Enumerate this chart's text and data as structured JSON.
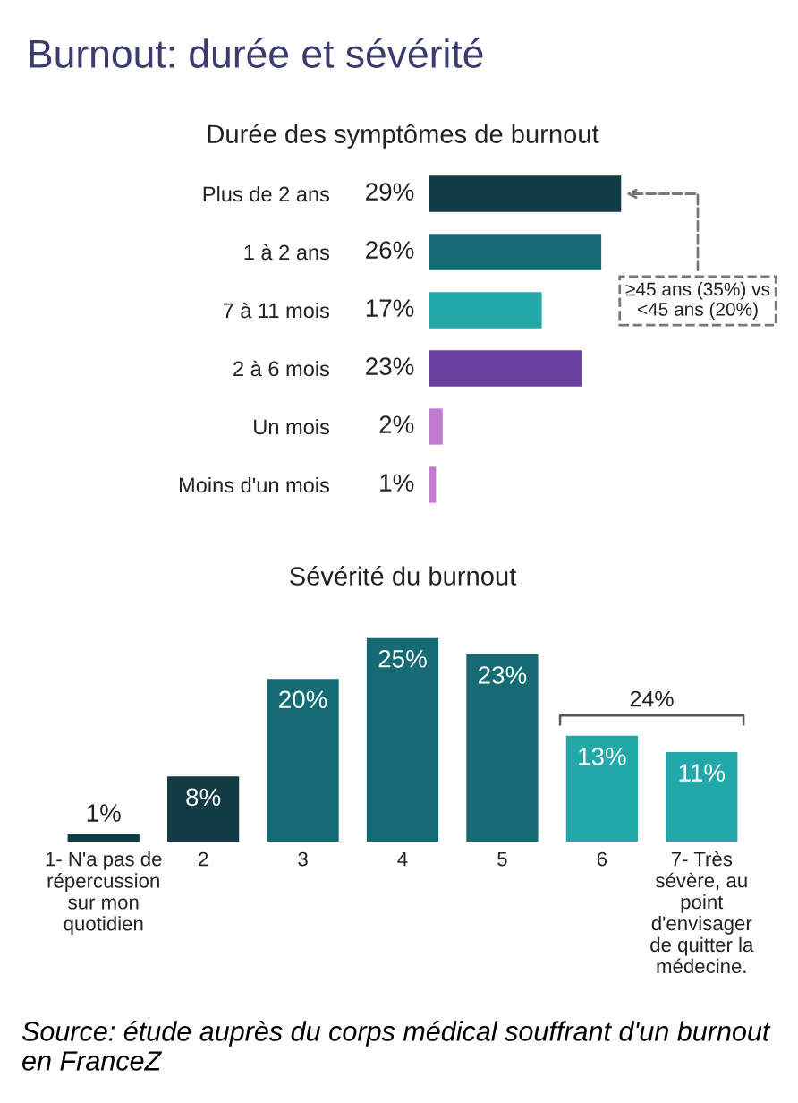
{
  "chart_data": [
    {
      "type": "bar",
      "orientation": "horizontal",
      "title": "Burnout: durée et sévérité",
      "subtitle": "Durée des symptômes de burnout",
      "categories": [
        "Plus de 2 ans",
        "1 à 2 ans",
        "7 à 11 mois",
        "2 à 6 mois",
        "Un mois",
        "Moins d'un mois"
      ],
      "values": [
        29,
        26,
        17,
        23,
        2,
        1
      ],
      "value_labels": [
        "29%",
        "26%",
        "17%",
        "23%",
        "2%",
        "1%"
      ],
      "colors": [
        "#123c45",
        "#146b73",
        "#22a8a8",
        "#6b3fa0",
        "#c07ccf",
        "#c07ccf"
      ],
      "annotations": [
        "≥45 ans (35%) vs\n<45 ans (20%)"
      ]
    },
    {
      "type": "bar",
      "title": "Sévérité du burnout",
      "categories": [
        "1- N'a pas de\nrépercussion\nsur mon\nquotidien",
        "2",
        "3",
        "4",
        "5",
        "6",
        "7- Très\nsévère, au\npoint\nd'envisager\nde quitter la\nmédecine."
      ],
      "values": [
        1,
        8,
        20,
        25,
        23,
        13,
        11
      ],
      "value_labels": [
        "1%",
        "8%",
        "20%",
        "25%",
        "23%",
        "13%",
        "11%"
      ],
      "colors": [
        "#123c45",
        "#123c45",
        "#146b73",
        "#146b73",
        "#146b73",
        "#22a8a8",
        "#22a8a8"
      ],
      "annotations": [
        "24%",
        "Source: étude auprès du corps médical souffrant d'un burnout en FranceZ"
      ]
    }
  ]
}
